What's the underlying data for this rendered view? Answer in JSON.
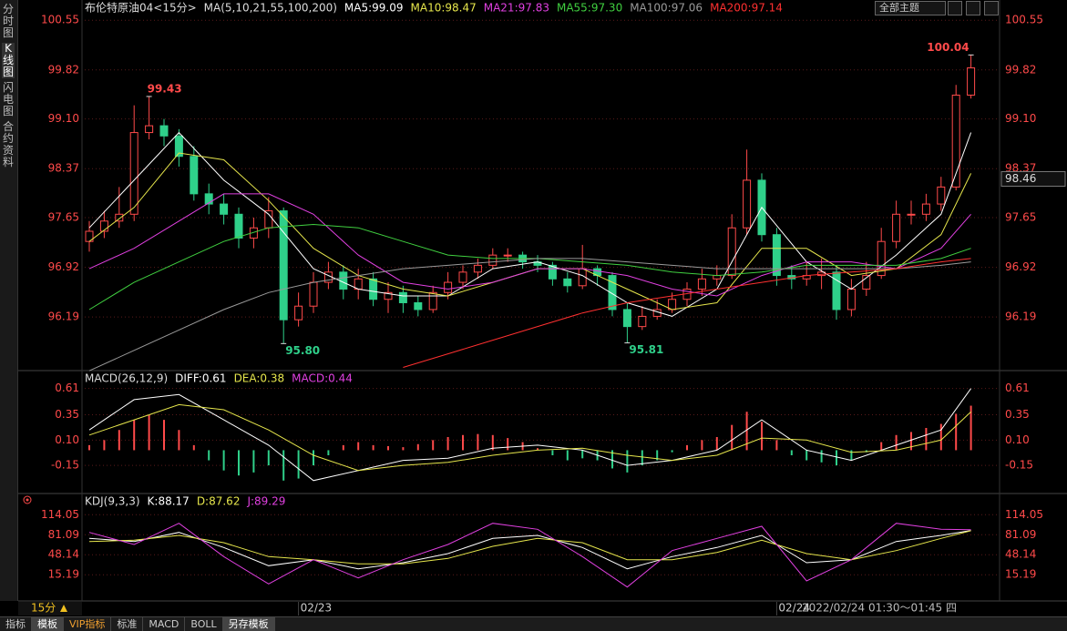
{
  "ui": {
    "side_tabs": [
      "分时图",
      "K线图",
      "闪电图",
      "合约资料"
    ],
    "theme_select": "全部主题",
    "period": "15分",
    "time_range": "2022/02/24 01:30～01:45 四",
    "bottom_tabs": [
      "指标",
      "模板",
      "VIP指标",
      "标准",
      "MACD",
      "BOLL",
      "另存模板"
    ]
  },
  "chart_data": [
    {
      "type": "candlestick",
      "title": "布伦特原油04<15分>",
      "indicator": "MA(5,10,21,55,100,200)",
      "categories": [
        null,
        null,
        null,
        null,
        null,
        null,
        null,
        null,
        null,
        null,
        null,
        null,
        null,
        null,
        "02/23",
        null,
        null,
        null,
        null,
        null,
        null,
        null,
        null,
        null,
        null,
        null,
        null,
        null,
        null,
        null,
        null,
        null,
        null,
        null,
        null,
        null,
        null,
        null,
        null,
        null,
        null,
        null,
        null,
        null,
        null,
        null,
        "02/24",
        null,
        null,
        null,
        null,
        null,
        null,
        null,
        null,
        null,
        null,
        null,
        null,
        null
      ],
      "open": [
        97.3,
        97.45,
        97.6,
        97.7,
        98.9,
        99.0,
        98.85,
        98.55,
        98.0,
        97.85,
        97.7,
        97.35,
        97.5,
        97.75,
        96.15,
        96.35,
        96.7,
        96.85,
        96.6,
        96.75,
        96.45,
        96.55,
        96.4,
        96.3,
        96.55,
        96.7,
        96.85,
        96.95,
        97.1,
        97.1,
        97.0,
        96.95,
        96.75,
        96.65,
        96.9,
        96.8,
        96.3,
        96.05,
        96.2,
        96.3,
        96.45,
        96.6,
        96.75,
        96.8,
        97.5,
        98.2,
        97.4,
        96.8,
        96.75,
        96.8,
        96.85,
        96.3,
        96.6,
        96.8,
        97.3,
        97.7,
        97.7,
        97.85,
        98.1,
        99.45
      ],
      "high": [
        97.6,
        97.75,
        98.1,
        99.3,
        99.43,
        99.1,
        98.95,
        98.7,
        98.15,
        98.0,
        97.8,
        97.65,
        97.95,
        97.8,
        96.55,
        96.85,
        97.0,
        96.95,
        96.9,
        96.85,
        96.7,
        96.65,
        96.5,
        96.65,
        96.85,
        96.95,
        97.05,
        97.2,
        97.2,
        97.15,
        97.1,
        97.0,
        96.85,
        97.25,
        96.95,
        96.85,
        96.4,
        96.35,
        96.45,
        96.55,
        96.7,
        96.9,
        96.95,
        97.7,
        98.65,
        98.3,
        97.5,
        96.95,
        97.0,
        97.05,
        96.95,
        96.75,
        97.0,
        97.5,
        97.9,
        97.9,
        98.0,
        98.25,
        99.6,
        100.04
      ],
      "low": [
        97.15,
        97.35,
        97.5,
        97.6,
        98.8,
        98.7,
        98.4,
        97.9,
        97.7,
        97.55,
        97.2,
        97.2,
        97.35,
        95.8,
        96.05,
        96.25,
        96.6,
        96.45,
        96.45,
        96.35,
        96.25,
        96.25,
        96.2,
        96.25,
        96.45,
        96.6,
        96.75,
        96.9,
        97.0,
        96.9,
        96.85,
        96.65,
        96.55,
        96.6,
        96.65,
        96.2,
        95.81,
        96.0,
        96.15,
        96.25,
        96.35,
        96.5,
        96.65,
        96.75,
        97.4,
        97.3,
        96.65,
        96.6,
        96.65,
        96.6,
        96.15,
        96.2,
        96.5,
        96.75,
        97.2,
        97.55,
        97.6,
        97.75,
        98.05,
        99.4
      ],
      "close": [
        97.45,
        97.6,
        97.7,
        98.9,
        99.0,
        98.85,
        98.55,
        98.0,
        97.85,
        97.7,
        97.35,
        97.5,
        97.75,
        96.15,
        96.35,
        96.7,
        96.85,
        96.6,
        96.75,
        96.45,
        96.55,
        96.4,
        96.3,
        96.55,
        96.7,
        96.85,
        96.95,
        97.1,
        97.1,
        97.0,
        96.95,
        96.75,
        96.65,
        96.9,
        96.8,
        96.3,
        96.05,
        96.2,
        96.3,
        96.45,
        96.6,
        96.75,
        96.8,
        97.5,
        98.2,
        97.4,
        96.8,
        96.75,
        96.8,
        96.85,
        96.3,
        96.6,
        96.8,
        97.3,
        97.7,
        97.7,
        97.85,
        98.1,
        99.45,
        99.85
      ],
      "up_color": "#ff4a4a",
      "down_color": "#2fd08a",
      "x": [
        0,
        3,
        6,
        9,
        12,
        15,
        18,
        21,
        24,
        27,
        30,
        33,
        36,
        39,
        42,
        45,
        48,
        51,
        54,
        57,
        59
      ],
      "series": [
        {
          "name": "MA5:99.09",
          "color": "#ffffff",
          "values": [
            97.5,
            98.2,
            98.9,
            98.2,
            97.7,
            96.9,
            96.6,
            96.5,
            96.5,
            96.9,
            97.0,
            96.8,
            96.4,
            96.2,
            96.6,
            97.8,
            97.0,
            96.6,
            97.1,
            97.7,
            98.9
          ]
        },
        {
          "name": "MA10:98.47",
          "color": "#e6e64c",
          "values": [
            97.3,
            97.8,
            98.6,
            98.5,
            97.9,
            97.2,
            96.8,
            96.6,
            96.5,
            96.7,
            96.9,
            96.9,
            96.6,
            96.3,
            96.4,
            97.2,
            97.2,
            96.8,
            96.9,
            97.4,
            98.3
          ]
        },
        {
          "name": "MA21:97.83",
          "color": "#e040e0",
          "values": [
            96.9,
            97.2,
            97.6,
            98.0,
            98.0,
            97.7,
            97.1,
            96.7,
            96.6,
            96.7,
            96.9,
            96.9,
            96.8,
            96.6,
            96.5,
            96.8,
            97.0,
            97.0,
            96.9,
            97.2,
            97.7
          ]
        },
        {
          "name": "MA55:97.30",
          "color": "#40d040",
          "values": [
            96.3,
            96.7,
            97.0,
            97.3,
            97.5,
            97.55,
            97.5,
            97.3,
            97.1,
            97.05,
            97.05,
            97.0,
            96.95,
            96.85,
            96.8,
            96.85,
            96.95,
            96.95,
            96.95,
            97.05,
            97.2
          ]
        },
        {
          "name": "MA100:97.06",
          "color": "#9a9a9a",
          "values": [
            95.4,
            95.7,
            96.0,
            96.3,
            96.55,
            96.7,
            96.8,
            96.9,
            96.95,
            97.0,
            97.05,
            97.05,
            97.0,
            96.95,
            96.9,
            96.9,
            96.9,
            96.9,
            96.9,
            96.95,
            97.0
          ]
        },
        {
          "name": "MA200:97.14",
          "color": "#ff3030",
          "values": [
            null,
            null,
            null,
            null,
            null,
            null,
            null,
            95.45,
            95.65,
            95.85,
            96.05,
            96.25,
            96.4,
            96.5,
            96.6,
            96.7,
            96.8,
            96.85,
            96.9,
            97.0,
            97.05
          ]
        }
      ],
      "annotations": [
        {
          "candle": 4,
          "value": 99.43,
          "label": "99.43"
        },
        {
          "candle": 13,
          "value": 95.8,
          "label": "95.80"
        },
        {
          "candle": 36,
          "value": 95.81,
          "label": "95.81"
        },
        {
          "candle": 59,
          "value": 100.04,
          "label": "100.04"
        }
      ],
      "current_price": "98.46",
      "ylim": [
        95.43,
        100.66
      ],
      "yticks": [
        96.19,
        96.92,
        97.65,
        98.37,
        {
          "value": 99.1,
          "label": "99.10"
        },
        99.82,
        100.55
      ],
      "grid": true
    },
    {
      "type": "macd",
      "title": "MACD(26,12,9)",
      "x": [
        0,
        3,
        6,
        9,
        12,
        15,
        18,
        21,
        24,
        27,
        30,
        33,
        36,
        39,
        42,
        45,
        48,
        51,
        54,
        57,
        59
      ],
      "series": [
        {
          "name": "DIFF:0.61",
          "color": "#ffffff",
          "values": [
            0.2,
            0.5,
            0.55,
            0.3,
            0.05,
            -0.3,
            -0.2,
            -0.1,
            -0.08,
            0.02,
            0.05,
            0.0,
            -0.15,
            -0.1,
            0.0,
            0.3,
            0.0,
            -0.1,
            0.05,
            0.2,
            0.61
          ]
        },
        {
          "name": "DEA:0.38",
          "color": "#e6e64c",
          "values": [
            0.15,
            0.3,
            0.45,
            0.4,
            0.2,
            -0.05,
            -0.2,
            -0.15,
            -0.12,
            -0.05,
            0.0,
            0.02,
            -0.05,
            -0.1,
            -0.05,
            0.12,
            0.1,
            -0.02,
            0.0,
            0.1,
            0.38
          ]
        }
      ],
      "histogram": {
        "name": "MACD:0.44",
        "color": "#e040e0",
        "up_color": "#ff4a4a",
        "down_color": "#2fd08a",
        "values": [
          0.05,
          0.1,
          0.2,
          0.3,
          0.35,
          0.3,
          0.2,
          0.05,
          -0.1,
          -0.2,
          -0.25,
          -0.22,
          -0.15,
          -0.3,
          -0.28,
          -0.15,
          -0.05,
          0.05,
          0.08,
          0.05,
          0.04,
          0.03,
          0.06,
          0.1,
          0.13,
          0.15,
          0.16,
          0.15,
          0.12,
          0.08,
          0.02,
          -0.05,
          -0.1,
          -0.08,
          -0.1,
          -0.18,
          -0.22,
          -0.15,
          -0.1,
          -0.02,
          0.05,
          0.1,
          0.13,
          0.25,
          0.38,
          0.28,
          0.1,
          -0.05,
          -0.1,
          -0.12,
          -0.15,
          -0.1,
          -0.02,
          0.08,
          0.15,
          0.18,
          0.22,
          0.26,
          0.36,
          0.44
        ]
      },
      "ylim": [
        -0.41,
        0.76
      ],
      "yticks": [
        -0.15,
        {
          "value": 0.1,
          "label": "0.10"
        },
        0.35,
        0.61
      ],
      "grid": true
    },
    {
      "type": "kdj",
      "title": "KDJ(9,3,3)",
      "x": [
        0,
        3,
        6,
        9,
        12,
        15,
        18,
        21,
        24,
        27,
        30,
        33,
        36,
        39,
        42,
        45,
        48,
        51,
        54,
        57,
        59
      ],
      "series": [
        {
          "name": "K:88.17",
          "color": "#ffffff",
          "values": [
            75,
            70,
            85,
            60,
            30,
            40,
            25,
            35,
            50,
            75,
            80,
            60,
            25,
            45,
            60,
            80,
            35,
            40,
            70,
            80,
            88.17
          ]
        },
        {
          "name": "D:87.62",
          "color": "#e6e64c",
          "values": [
            70,
            72,
            80,
            68,
            45,
            40,
            33,
            33,
            42,
            62,
            75,
            68,
            40,
            40,
            52,
            72,
            50,
            40,
            55,
            75,
            87.62
          ]
        },
        {
          "name": "J:89.29",
          "color": "#e040e0",
          "values": [
            85,
            65,
            100,
            45,
            0,
            40,
            10,
            40,
            65,
            100,
            90,
            45,
            -5,
            55,
            75,
            95,
            5,
            40,
            100,
            90,
            89.29
          ]
        }
      ],
      "ylim": [
        -25,
        140
      ],
      "yticks": [
        15.19,
        48.14,
        81.09,
        114.05
      ],
      "grid": true
    }
  ]
}
